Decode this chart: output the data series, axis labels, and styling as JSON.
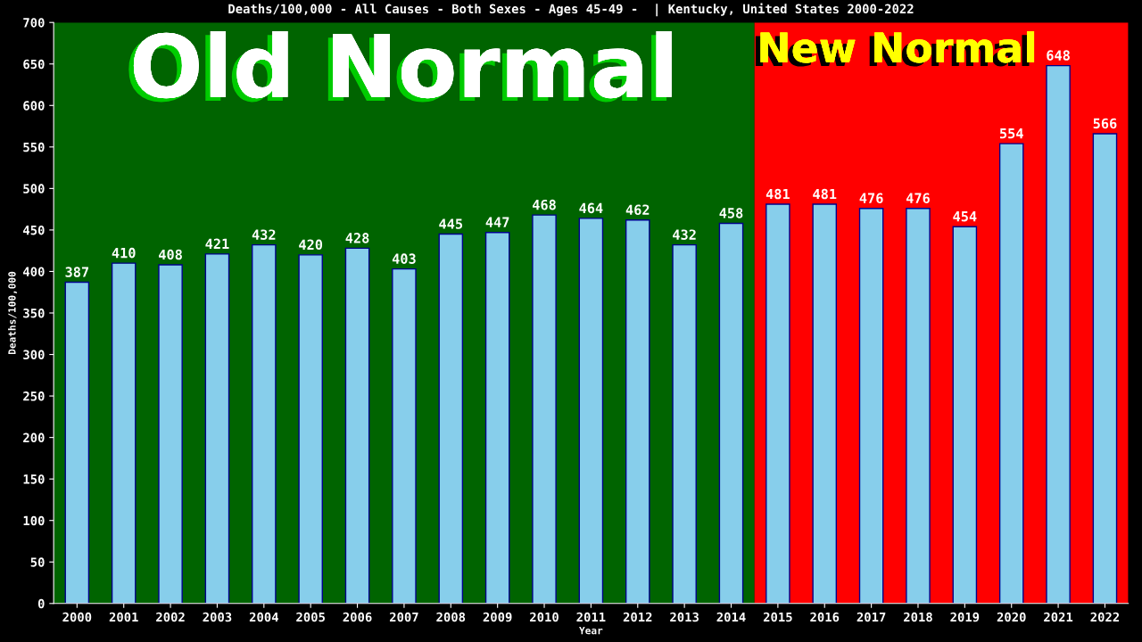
{
  "chart_data": {
    "type": "bar",
    "title": "Deaths/100,000 - All Causes - Both Sexes - Ages 45-49 -  | Kentucky, United States 2000-2022",
    "xlabel": "Year",
    "ylabel": "Deaths/100,000",
    "categories": [
      "2000",
      "2001",
      "2002",
      "2003",
      "2004",
      "2005",
      "2006",
      "2007",
      "2008",
      "2009",
      "2010",
      "2011",
      "2012",
      "2013",
      "2014",
      "2015",
      "2016",
      "2017",
      "2018",
      "2019",
      "2020",
      "2021",
      "2022"
    ],
    "values": [
      387,
      410,
      408,
      421,
      432,
      420,
      428,
      403,
      445,
      447,
      468,
      464,
      462,
      432,
      458,
      481,
      481,
      476,
      476,
      454,
      554,
      648,
      566
    ],
    "color": "#87ceeb",
    "data_labels": true,
    "ylim": [
      0,
      700
    ],
    "yticks": [
      0,
      50,
      100,
      150,
      200,
      250,
      300,
      350,
      400,
      450,
      500,
      550,
      600,
      650,
      700
    ],
    "grid": false,
    "legend": false,
    "bands": [
      {
        "axis": "x",
        "from": "2000",
        "to": "2014",
        "label": "Old Normal",
        "color": "#006400"
      },
      {
        "axis": "x",
        "from": "2015",
        "to": "2022",
        "label": "New Normal",
        "color": "#ff0000"
      }
    ]
  }
}
